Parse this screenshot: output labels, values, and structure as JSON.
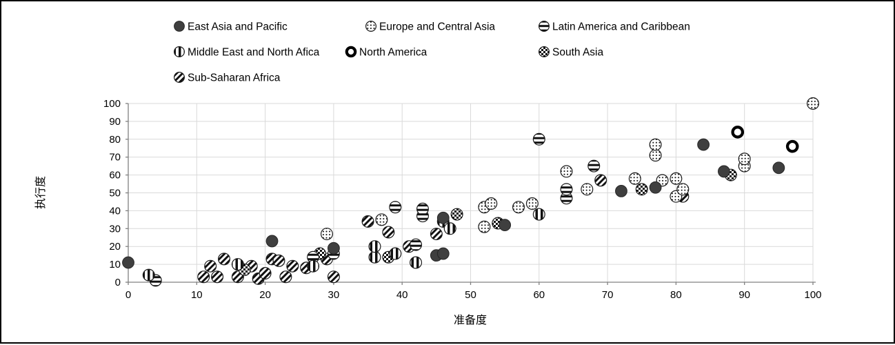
{
  "figure": {
    "background": "#ffffff",
    "border_color": "#000000",
    "grid_color": "#d9d9d9",
    "axis_color": "#808080",
    "text_color": "#000000"
  },
  "legend": {
    "position": "top",
    "rows": [
      [
        "East Asia and Pacific",
        "Europe and Central Asia",
        "Latin America and Caribbean"
      ],
      [
        "Middle East and North Afica",
        "North America",
        "South Asia"
      ],
      [
        "Sub-Saharan Africa"
      ]
    ]
  },
  "chart_data": {
    "type": "scatter",
    "title": "",
    "xlabel": "准备度",
    "ylabel": "执行度",
    "xlim": [
      0,
      100
    ],
    "ylim": [
      0,
      100
    ],
    "x_ticks": [
      0,
      10,
      20,
      30,
      40,
      50,
      60,
      70,
      80,
      90,
      100
    ],
    "y_ticks": [
      0,
      10,
      20,
      30,
      40,
      50,
      60,
      70,
      80,
      90,
      100
    ],
    "grid": true,
    "series": [
      {
        "name": "East Asia and Pacific",
        "marker": "solid-dark-circle",
        "color": "#3f3f3f",
        "points": [
          [
            0,
            11
          ],
          [
            21,
            23
          ],
          [
            30,
            19
          ],
          [
            45,
            15
          ],
          [
            46,
            16
          ],
          [
            46,
            36
          ],
          [
            55,
            32
          ],
          [
            72,
            51
          ],
          [
            77,
            53
          ],
          [
            84,
            77
          ],
          [
            87,
            62
          ],
          [
            95,
            64
          ]
        ]
      },
      {
        "name": "Europe and Central Asia",
        "marker": "dotted-circle",
        "color": "#000000",
        "points": [
          [
            29,
            27
          ],
          [
            37,
            35
          ],
          [
            52,
            31
          ],
          [
            52,
            42
          ],
          [
            53,
            44
          ],
          [
            57,
            42
          ],
          [
            59,
            44
          ],
          [
            64,
            62
          ],
          [
            67,
            52
          ],
          [
            74,
            58
          ],
          [
            77,
            71
          ],
          [
            77,
            77
          ],
          [
            78,
            57
          ],
          [
            80,
            48
          ],
          [
            80,
            58
          ],
          [
            81,
            52
          ],
          [
            90,
            65
          ],
          [
            90,
            69
          ],
          [
            100,
            100
          ]
        ]
      },
      {
        "name": "Latin America and Caribbean",
        "marker": "horizontal-stripe-circle",
        "color": "#000000",
        "points": [
          [
            4,
            1
          ],
          [
            27,
            14
          ],
          [
            30,
            16
          ],
          [
            39,
            42
          ],
          [
            42,
            21
          ],
          [
            43,
            37
          ],
          [
            43,
            41
          ],
          [
            60,
            80
          ],
          [
            64,
            47
          ],
          [
            64,
            52
          ],
          [
            68,
            65
          ]
        ]
      },
      {
        "name": "Middle East and North Afica",
        "marker": "vertical-stripe-circle",
        "color": "#000000",
        "points": [
          [
            3,
            4
          ],
          [
            16,
            10
          ],
          [
            27,
            9
          ],
          [
            36,
            14
          ],
          [
            36,
            20
          ],
          [
            39,
            16
          ],
          [
            42,
            11
          ],
          [
            46,
            34
          ],
          [
            47,
            30
          ],
          [
            60,
            38
          ]
        ]
      },
      {
        "name": "North America",
        "marker": "thick-ring-circle",
        "color": "#000000",
        "points": [
          [
            89,
            84
          ],
          [
            97,
            76
          ]
        ]
      },
      {
        "name": "South Asia",
        "marker": "checker-circle",
        "color": "#000000",
        "points": [
          [
            17,
            7
          ],
          [
            28,
            16
          ],
          [
            38,
            14
          ],
          [
            48,
            38
          ],
          [
            54,
            33
          ],
          [
            75,
            52
          ],
          [
            88,
            60
          ]
        ]
      },
      {
        "name": "Sub-Saharan Africa",
        "marker": "diagonal-stripe-circle",
        "color": "#000000",
        "points": [
          [
            11,
            3
          ],
          [
            12,
            9
          ],
          [
            13,
            3
          ],
          [
            14,
            13
          ],
          [
            16,
            3
          ],
          [
            18,
            9
          ],
          [
            19,
            2
          ],
          [
            20,
            5
          ],
          [
            21,
            13
          ],
          [
            22,
            12
          ],
          [
            23,
            3
          ],
          [
            24,
            9
          ],
          [
            26,
            8
          ],
          [
            29,
            13
          ],
          [
            30,
            3
          ],
          [
            35,
            34
          ],
          [
            38,
            28
          ],
          [
            41,
            20
          ],
          [
            45,
            27
          ],
          [
            69,
            57
          ],
          [
            81,
            48
          ]
        ]
      }
    ]
  }
}
